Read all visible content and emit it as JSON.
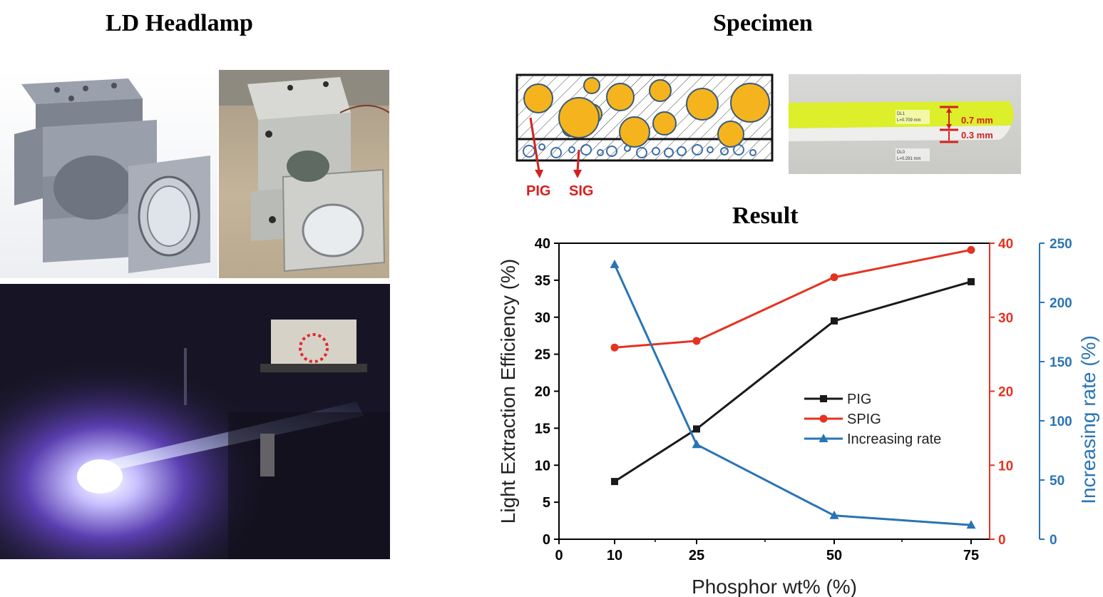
{
  "titles": {
    "headlamp": "LD Headlamp",
    "specimen": "Specimen",
    "result": "Result"
  },
  "specimen": {
    "pig_label": "PIG",
    "sig_label": "SIG",
    "thickness_top": "0.7 mm",
    "thickness_bottom": "0.3 mm",
    "micro_label_1a": "DL1",
    "micro_label_1b": "L=0.709 mm",
    "micro_label_2a": "DL0",
    "micro_label_2b": "L=0.291 mm",
    "phosphor_color": "#f5b41e",
    "arrow_color": "#d42020"
  },
  "chart_data": {
    "type": "line",
    "xlabel": "Phosphor wt% (%)",
    "x_ticks": [
      "0",
      "10",
      "25",
      "50",
      "75"
    ],
    "x": [
      "10",
      "25",
      "50",
      "75"
    ],
    "ylabel": "Light Extraction Efficiency (%)",
    "ylabel_right1": "",
    "ylabel_right2": "Increasing rate (%)",
    "ylim": [
      0,
      40
    ],
    "ylim_right1": [
      0,
      40
    ],
    "ylim_right2": [
      0,
      250
    ],
    "y_ticks": [
      "0",
      "5",
      "10",
      "15",
      "20",
      "25",
      "30",
      "35",
      "40"
    ],
    "y_ticks_right1": [
      "0",
      "10",
      "20",
      "30",
      "40"
    ],
    "y_ticks_right2": [
      "0",
      "50",
      "100",
      "150",
      "200",
      "250"
    ],
    "series": [
      {
        "name": "PIG",
        "axis": "left",
        "color": "#1a1a1a",
        "marker": "square",
        "values": [
          7.8,
          14.9,
          29.5,
          34.8
        ]
      },
      {
        "name": "SPIG",
        "axis": "right1",
        "color": "#e53221",
        "marker": "circle",
        "values": [
          25.9,
          26.8,
          35.4,
          39.1
        ]
      },
      {
        "name": "Increasing rate",
        "axis": "right2",
        "color": "#2a74b4",
        "marker": "triangle",
        "values": [
          232,
          80,
          20,
          12
        ]
      }
    ],
    "legend_position": "center-right",
    "grid": false,
    "left_axis_color": "#000000",
    "right1_axis_color": "#e53221",
    "right2_axis_color": "#2a74b4"
  }
}
